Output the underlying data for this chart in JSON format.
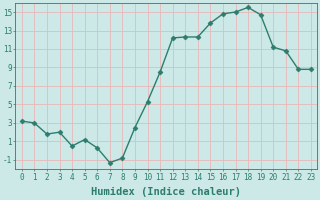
{
  "x": [
    0,
    1,
    2,
    3,
    4,
    5,
    6,
    7,
    8,
    9,
    10,
    11,
    12,
    13,
    14,
    15,
    16,
    17,
    18,
    19,
    20,
    21,
    22,
    23
  ],
  "y": [
    3.2,
    3.0,
    1.8,
    2.0,
    0.5,
    1.2,
    0.3,
    -1.3,
    -0.8,
    2.5,
    5.3,
    8.5,
    12.2,
    12.3,
    12.3,
    13.8,
    14.8,
    15.0,
    15.5,
    14.7,
    11.2,
    10.8,
    8.8,
    8.8
  ],
  "line_color": "#2d7d6e",
  "marker": "D",
  "marker_size": 2.5,
  "bg_color": "#cce9e7",
  "grid_color": "#e8b8b8",
  "xlabel": "Humidex (Indice chaleur)",
  "xlim": [
    -0.5,
    23.5
  ],
  "ylim": [
    -2.0,
    16.0
  ],
  "yticks": [
    -1,
    1,
    3,
    5,
    7,
    9,
    11,
    13,
    15
  ],
  "xticks": [
    0,
    1,
    2,
    3,
    4,
    5,
    6,
    7,
    8,
    9,
    10,
    11,
    12,
    13,
    14,
    15,
    16,
    17,
    18,
    19,
    20,
    21,
    22,
    23
  ],
  "tick_fontsize": 5.5,
  "xlabel_fontsize": 7.5,
  "tick_color": "#2d7d6e",
  "axis_color": "#2d7d6e",
  "line_width": 1.0
}
